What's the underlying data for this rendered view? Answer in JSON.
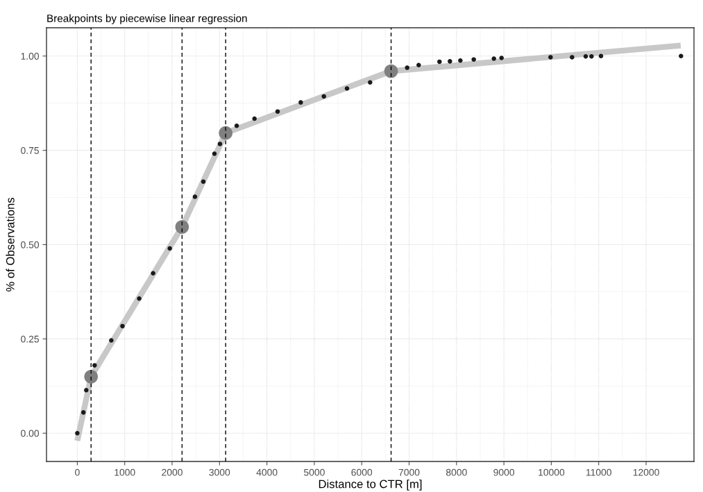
{
  "chart_data": {
    "type": "scatter",
    "title": "Breakpoints by piecewise linear regression",
    "xlabel": "Distance to CTR [m]",
    "ylabel": "% of Observations",
    "xlim": [
      -650,
      13010
    ],
    "ylim": [
      -0.075,
      1.075
    ],
    "xticks": [
      0,
      1000,
      2000,
      3000,
      4000,
      5000,
      6000,
      7000,
      8000,
      9000,
      10000,
      11000,
      12000
    ],
    "yticks": [
      {
        "value": 0,
        "label": "0.00"
      },
      {
        "value": 0.25,
        "label": "0.25"
      },
      {
        "value": 0.5,
        "label": "0.50"
      },
      {
        "value": 0.75,
        "label": "0.75"
      },
      {
        "value": 1,
        "label": "1.00"
      }
    ],
    "grid": true,
    "legend": false,
    "series": [
      {
        "type": "line",
        "color": "#c8c8c8",
        "x": [
          0,
          290,
          2210,
          3130,
          6620,
          12730
        ],
        "values": [
          -0.02,
          0.15,
          0.547,
          0.796,
          0.96,
          1.028
        ]
      },
      {
        "color": "#1a1a1a",
        "marker": "circle",
        "x": [
          0,
          129,
          189,
          365,
          717,
          953,
          1306,
          1599,
          1952,
          2482,
          2659,
          2893,
          3010,
          3363,
          3738,
          4226,
          4714,
          5202,
          5690,
          6177,
          6959,
          7202,
          7641,
          7861,
          8081,
          8364,
          8789,
          8950,
          9984,
          10438,
          10726,
          10848,
          11048,
          12736
        ],
        "values": [
          0,
          0.055,
          0.114,
          0.18,
          0.246,
          0.284,
          0.357,
          0.424,
          0.49,
          0.627,
          0.667,
          0.741,
          0.767,
          0.815,
          0.834,
          0.853,
          0.877,
          0.893,
          0.914,
          0.93,
          0.969,
          0.976,
          0.985,
          0.986,
          0.988,
          0.991,
          0.993,
          0.995,
          0.997,
          0.997,
          0.999,
          0.999,
          1.0,
          1.0
        ]
      },
      {
        "color": "#808080",
        "marker": "circle",
        "x": [
          290,
          2210,
          3130,
          6620
        ],
        "values": [
          0.15,
          0.547,
          0.796,
          0.96
        ]
      }
    ],
    "ref_lines": [
      {
        "axis": "x",
        "value": 290,
        "color": "#000000",
        "line_style": "dashed"
      },
      {
        "axis": "x",
        "value": 2210,
        "color": "#000000",
        "line_style": "dashed"
      },
      {
        "axis": "x",
        "value": 3130,
        "color": "#000000",
        "line_style": "dashed"
      },
      {
        "axis": "x",
        "value": 6620,
        "color": "#000000",
        "line_style": "dashed"
      }
    ]
  }
}
